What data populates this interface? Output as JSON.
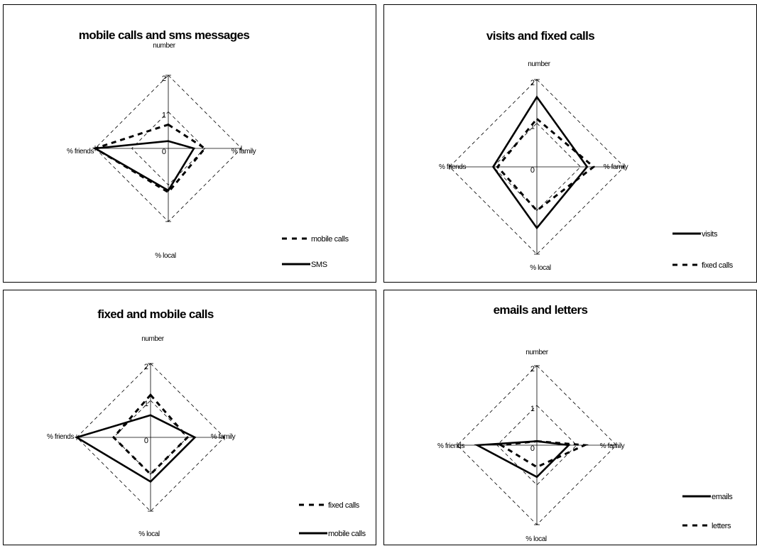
{
  "chart_data": [
    {
      "type": "radar",
      "title": "mobile calls and sms messages",
      "axes": [
        "number",
        "% family",
        "% local",
        "% friends"
      ],
      "ticks": [
        "0",
        "1",
        "2"
      ],
      "range": [
        0,
        2
      ],
      "series": [
        {
          "name": "mobile calls",
          "style": "dashed",
          "values": [
            0.65,
            1.0,
            1.2,
            2.0
          ]
        },
        {
          "name": "SMS",
          "style": "solid",
          "values": [
            0.2,
            0.7,
            1.15,
            2.0
          ]
        }
      ],
      "legend": "bottom-right"
    },
    {
      "type": "radar",
      "title": "visits and fixed calls",
      "axes": [
        "number",
        "% family",
        "% local",
        "% friends"
      ],
      "ticks": [
        "0",
        "1",
        "2"
      ],
      "range": [
        0,
        2
      ],
      "series": [
        {
          "name": "visits",
          "style": "solid",
          "values": [
            1.6,
            1.15,
            1.4,
            1.0
          ]
        },
        {
          "name": "fixed calls",
          "style": "dashed",
          "values": [
            1.1,
            1.3,
            1.0,
            0.9
          ]
        }
      ],
      "legend": "bottom-right"
    },
    {
      "type": "radar",
      "title": "fixed and mobile calls",
      "axes": [
        "number",
        "% family",
        "% local",
        "% friends"
      ],
      "ticks": [
        "0",
        "1",
        "2"
      ],
      "range": [
        0,
        2
      ],
      "series": [
        {
          "name": "fixed calls",
          "style": "dashed",
          "values": [
            1.15,
            1.0,
            1.0,
            1.0
          ]
        },
        {
          "name": "mobile calls",
          "style": "solid",
          "values": [
            0.6,
            1.2,
            1.2,
            2.0
          ]
        }
      ],
      "legend": "bottom-right"
    },
    {
      "type": "radar",
      "title": "emails and letters",
      "axes": [
        "number",
        "% family",
        "% local",
        "% friends"
      ],
      "ticks": [
        "0",
        "1",
        "2"
      ],
      "range": [
        0,
        2
      ],
      "series": [
        {
          "name": "emails",
          "style": "solid",
          "values": [
            0.1,
            0.8,
            0.8,
            1.5
          ]
        },
        {
          "name": "letters",
          "style": "dashed",
          "values": [
            0.1,
            1.2,
            0.55,
            0.9
          ]
        }
      ],
      "legend": "bottom-right"
    }
  ]
}
